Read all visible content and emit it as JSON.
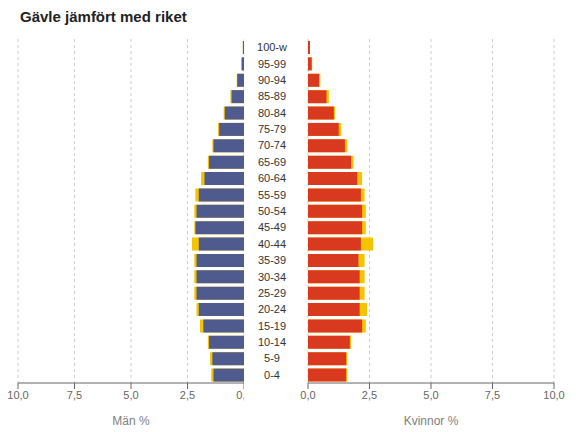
{
  "chart_data": [
    {
      "type": "bar",
      "orientation": "horizontal",
      "title": "Gävle jämfört med riket",
      "xlabel": "Män %",
      "categories": [
        "0-4",
        "5-9",
        "10-14",
        "15-19",
        "20-24",
        "25-29",
        "30-34",
        "35-39",
        "40-44",
        "45-49",
        "50-54",
        "55-59",
        "60-64",
        "65-69",
        "70-74",
        "75-79",
        "80-84",
        "85-89",
        "90-94",
        "95-99",
        "100-w"
      ],
      "series": [
        {
          "color": "#f5c400",
          "values": [
            1.45,
            1.5,
            1.6,
            1.95,
            2.1,
            2.2,
            2.2,
            2.2,
            2.3,
            2.2,
            2.2,
            2.15,
            1.9,
            1.6,
            1.4,
            1.15,
            0.9,
            0.6,
            0.32,
            0.12,
            0.05
          ]
        },
        {
          "color": "#4f5b8e",
          "values": [
            1.35,
            1.4,
            1.55,
            1.8,
            2.0,
            2.1,
            2.1,
            2.1,
            2.0,
            2.15,
            2.1,
            2.0,
            1.75,
            1.55,
            1.35,
            1.1,
            0.85,
            0.55,
            0.3,
            0.1,
            0.05
          ]
        }
      ],
      "xlim": [
        10.0,
        0.0
      ],
      "xticks": [
        {
          "value": 0.0,
          "label": "0,0"
        },
        {
          "value": 2.5,
          "label": "2,5"
        },
        {
          "value": 5.0,
          "label": "5,0"
        },
        {
          "value": 7.5,
          "label": "7,5"
        },
        {
          "value": 10.0,
          "label": "10,0"
        }
      ],
      "grid": true
    },
    {
      "type": "bar",
      "orientation": "horizontal",
      "xlabel": "Kvinnor %",
      "categories": [
        "0-4",
        "5-9",
        "10-14",
        "15-19",
        "20-24",
        "25-29",
        "30-34",
        "35-39",
        "40-44",
        "45-49",
        "50-54",
        "55-59",
        "60-64",
        "65-69",
        "70-74",
        "75-79",
        "80-84",
        "85-89",
        "90-94",
        "95-99",
        "100-w"
      ],
      "series": [
        {
          "color": "#f5c400",
          "values": [
            1.6,
            1.6,
            1.75,
            2.35,
            2.4,
            2.3,
            2.3,
            2.3,
            2.65,
            2.35,
            2.35,
            2.3,
            2.2,
            1.85,
            1.6,
            1.35,
            1.1,
            0.85,
            0.5,
            0.17,
            0.08
          ]
        },
        {
          "color": "#d93a1f",
          "values": [
            1.55,
            1.55,
            1.7,
            2.2,
            2.1,
            2.1,
            2.1,
            2.05,
            2.15,
            2.2,
            2.2,
            2.15,
            2.0,
            1.75,
            1.5,
            1.25,
            1.05,
            0.75,
            0.45,
            0.15,
            0.08
          ]
        }
      ],
      "xlim": [
        0.0,
        10.0
      ],
      "xticks": [
        {
          "value": 0.0,
          "label": "0,0"
        },
        {
          "value": 2.5,
          "label": "2,5"
        },
        {
          "value": 5.0,
          "label": "5,0"
        },
        {
          "value": 7.5,
          "label": "7,5"
        },
        {
          "value": 10.0,
          "label": "10,0"
        }
      ],
      "grid": true
    }
  ]
}
